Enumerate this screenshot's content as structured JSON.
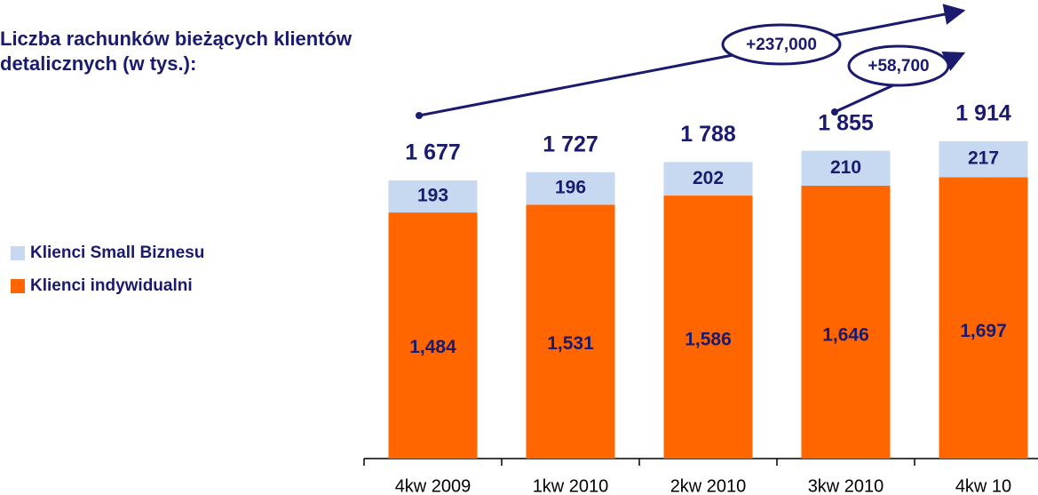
{
  "chart_data": {
    "type": "stacked-bar",
    "title": "Liczba rachunków bieżących klientów detalicznych (w tys.):",
    "categories": [
      "4kw 2009",
      "1kw 2010",
      "2kw 2010",
      "3kw 2010",
      "4kw 10"
    ],
    "series": [
      {
        "name": "Klienci indywidualni",
        "color": "#ff6600",
        "values": [
          1484,
          1531,
          1586,
          1646,
          1697
        ],
        "value_labels": [
          "1,484",
          "1,531",
          "1,586",
          "1,646",
          "1,697"
        ]
      },
      {
        "name": "Klienci Small Biznesu",
        "color": "#c6d9f1",
        "values": [
          193,
          196,
          202,
          210,
          217
        ]
      }
    ],
    "totals": [
      1677,
      1727,
      1788,
      1855,
      1914
    ],
    "total_labels": [
      "1 677",
      "1 727",
      "1 788",
      "1 855",
      "1 914"
    ],
    "annotations": [
      "+237,000",
      "+58,700"
    ]
  }
}
